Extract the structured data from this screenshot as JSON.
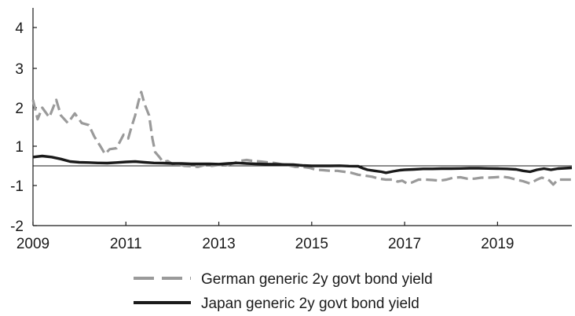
{
  "chart_data": {
    "type": "line",
    "title": "",
    "xlabel": "",
    "ylabel": "",
    "xlim": [
      2009.0,
      2020.6
    ],
    "ylim": [
      -2,
      4.5
    ],
    "x_ticks": [
      2009,
      2011,
      2013,
      2015,
      2017,
      2019
    ],
    "x_tick_labels": [
      "2009",
      "2011",
      "2013",
      "2015",
      "2017",
      "2019"
    ],
    "y_ticks": [
      -2,
      -1,
      1,
      2,
      3,
      4
    ],
    "y_tick_labels": [
      "-2",
      "-1",
      "1",
      "2",
      "3",
      "4"
    ],
    "reference_line_y": 0,
    "grid": false,
    "legend_position": "bottom",
    "series": [
      {
        "name": "German generic 2y govt bond yield",
        "style": "dashed",
        "color": "#9a9a9a",
        "points": [
          [
            2009.0,
            2.2
          ],
          [
            2009.1,
            1.7
          ],
          [
            2009.2,
            2.0
          ],
          [
            2009.35,
            1.75
          ],
          [
            2009.5,
            2.2
          ],
          [
            2009.6,
            1.8
          ],
          [
            2009.75,
            1.6
          ],
          [
            2009.9,
            1.85
          ],
          [
            2010.05,
            1.6
          ],
          [
            2010.2,
            1.55
          ],
          [
            2010.32,
            1.25
          ],
          [
            2010.45,
            1.0
          ],
          [
            2010.55,
            0.6
          ],
          [
            2010.65,
            0.85
          ],
          [
            2010.8,
            0.9
          ],
          [
            2010.95,
            1.3
          ],
          [
            2011.05,
            1.2
          ],
          [
            2011.12,
            1.5
          ],
          [
            2011.2,
            1.8
          ],
          [
            2011.27,
            2.15
          ],
          [
            2011.33,
            2.4
          ],
          [
            2011.4,
            2.1
          ],
          [
            2011.5,
            1.8
          ],
          [
            2011.57,
            1.2
          ],
          [
            2011.63,
            0.7
          ],
          [
            2011.72,
            0.45
          ],
          [
            2011.8,
            0.2
          ],
          [
            2011.9,
            0.25
          ],
          [
            2012.0,
            0.1
          ],
          [
            2012.1,
            0.12
          ],
          [
            2012.25,
            0.0
          ],
          [
            2012.4,
            -0.02
          ],
          [
            2012.55,
            -0.05
          ],
          [
            2012.7,
            0.05
          ],
          [
            2012.85,
            0.0
          ],
          [
            2013.0,
            0.05
          ],
          [
            2013.15,
            0.02
          ],
          [
            2013.3,
            0.12
          ],
          [
            2013.45,
            0.25
          ],
          [
            2013.6,
            0.3
          ],
          [
            2013.75,
            0.25
          ],
          [
            2013.9,
            0.22
          ],
          [
            2014.05,
            0.18
          ],
          [
            2014.2,
            0.15
          ],
          [
            2014.35,
            0.08
          ],
          [
            2014.5,
            0.03
          ],
          [
            2014.65,
            -0.05
          ],
          [
            2014.8,
            -0.05
          ],
          [
            2014.95,
            -0.1
          ],
          [
            2015.1,
            -0.2
          ],
          [
            2015.25,
            -0.22
          ],
          [
            2015.4,
            -0.25
          ],
          [
            2015.55,
            -0.25
          ],
          [
            2015.7,
            -0.3
          ],
          [
            2015.85,
            -0.35
          ],
          [
            2016.0,
            -0.45
          ],
          [
            2016.15,
            -0.5
          ],
          [
            2016.3,
            -0.55
          ],
          [
            2016.45,
            -0.65
          ],
          [
            2016.6,
            -0.7
          ],
          [
            2016.75,
            -0.7
          ],
          [
            2016.85,
            -0.8
          ],
          [
            2016.95,
            -0.75
          ],
          [
            2017.05,
            -0.9
          ],
          [
            2017.15,
            -0.85
          ],
          [
            2017.3,
            -0.7
          ],
          [
            2017.45,
            -0.7
          ],
          [
            2017.6,
            -0.72
          ],
          [
            2017.75,
            -0.75
          ],
          [
            2017.9,
            -0.7
          ],
          [
            2018.05,
            -0.6
          ],
          [
            2018.2,
            -0.58
          ],
          [
            2018.35,
            -0.65
          ],
          [
            2018.5,
            -0.65
          ],
          [
            2018.65,
            -0.6
          ],
          [
            2018.8,
            -0.6
          ],
          [
            2018.95,
            -0.58
          ],
          [
            2019.1,
            -0.55
          ],
          [
            2019.25,
            -0.6
          ],
          [
            2019.4,
            -0.7
          ],
          [
            2019.55,
            -0.78
          ],
          [
            2019.7,
            -0.9
          ],
          [
            2019.85,
            -0.7
          ],
          [
            2019.95,
            -0.6
          ],
          [
            2020.05,
            -0.65
          ],
          [
            2020.12,
            -0.75
          ],
          [
            2020.2,
            -0.95
          ],
          [
            2020.3,
            -0.7
          ],
          [
            2020.45,
            -0.7
          ],
          [
            2020.6,
            -0.7
          ]
        ]
      },
      {
        "name": "Japan generic 2y govt bond yield",
        "style": "solid",
        "color": "#1a1a1a",
        "points": [
          [
            2009.0,
            0.45
          ],
          [
            2009.2,
            0.5
          ],
          [
            2009.4,
            0.45
          ],
          [
            2009.6,
            0.35
          ],
          [
            2009.8,
            0.22
          ],
          [
            2010.0,
            0.18
          ],
          [
            2010.2,
            0.17
          ],
          [
            2010.4,
            0.15
          ],
          [
            2010.6,
            0.14
          ],
          [
            2010.8,
            0.17
          ],
          [
            2011.0,
            0.2
          ],
          [
            2011.2,
            0.22
          ],
          [
            2011.4,
            0.18
          ],
          [
            2011.6,
            0.15
          ],
          [
            2011.8,
            0.14
          ],
          [
            2012.0,
            0.12
          ],
          [
            2012.2,
            0.12
          ],
          [
            2012.4,
            0.1
          ],
          [
            2012.6,
            0.1
          ],
          [
            2012.8,
            0.1
          ],
          [
            2013.0,
            0.09
          ],
          [
            2013.2,
            0.12
          ],
          [
            2013.4,
            0.15
          ],
          [
            2013.6,
            0.12
          ],
          [
            2013.8,
            0.1
          ],
          [
            2014.0,
            0.09
          ],
          [
            2014.2,
            0.08
          ],
          [
            2014.4,
            0.07
          ],
          [
            2014.6,
            0.06
          ],
          [
            2014.8,
            0.02
          ],
          [
            2015.0,
            0.0
          ],
          [
            2015.2,
            0.0
          ],
          [
            2015.4,
            0.0
          ],
          [
            2015.6,
            0.01
          ],
          [
            2015.8,
            -0.01
          ],
          [
            2016.0,
            -0.02
          ],
          [
            2016.1,
            -0.12
          ],
          [
            2016.2,
            -0.2
          ],
          [
            2016.35,
            -0.25
          ],
          [
            2016.5,
            -0.3
          ],
          [
            2016.6,
            -0.35
          ],
          [
            2016.75,
            -0.28
          ],
          [
            2016.9,
            -0.22
          ],
          [
            2017.0,
            -0.2
          ],
          [
            2017.2,
            -0.18
          ],
          [
            2017.4,
            -0.15
          ],
          [
            2017.6,
            -0.15
          ],
          [
            2017.8,
            -0.14
          ],
          [
            2018.0,
            -0.14
          ],
          [
            2018.2,
            -0.13
          ],
          [
            2018.4,
            -0.12
          ],
          [
            2018.6,
            -0.12
          ],
          [
            2018.8,
            -0.13
          ],
          [
            2019.0,
            -0.14
          ],
          [
            2019.2,
            -0.15
          ],
          [
            2019.4,
            -0.18
          ],
          [
            2019.55,
            -0.25
          ],
          [
            2019.7,
            -0.3
          ],
          [
            2019.85,
            -0.2
          ],
          [
            2020.0,
            -0.14
          ],
          [
            2020.15,
            -0.2
          ],
          [
            2020.3,
            -0.14
          ],
          [
            2020.45,
            -0.12
          ],
          [
            2020.6,
            -0.1
          ]
        ]
      }
    ]
  }
}
